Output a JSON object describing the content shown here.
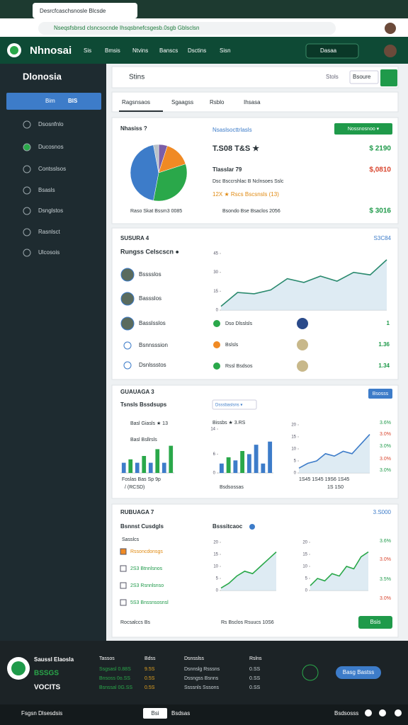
{
  "browser": {
    "tab_title": "Desrcfcaschsnosle Blcsde",
    "url": "Nseqsfsbrsd clsncsocnde Ihsqsbnefcsgesb.0sgb Gblsclsn"
  },
  "header": {
    "brand": "Nhnosai",
    "nav": [
      "Sis",
      "Bmsis",
      "Ntvins",
      "Banscs",
      "Dsctins",
      "Sisn"
    ],
    "search": "Dasaa"
  },
  "sidebar": {
    "title": "Dlonosia",
    "button": [
      "Bim",
      "BIS"
    ],
    "items": [
      "Dsosnfnlo",
      "Ducosnos",
      "Contsslsos",
      "Bsasls",
      "Dsnglstos",
      "Rasnlsct",
      "Ulcosois"
    ]
  },
  "toolbar": {
    "title": "Stins",
    "search": "Stols",
    "select": "Bsoure"
  },
  "tabs": [
    "Ragsnsaos",
    "Sgaagss",
    "Rsblo",
    "Ihsasa"
  ],
  "overview": {
    "title": "Nhasiss ?",
    "link": "Nsaslsocttrlasls",
    "button": "Nossnosnoo ▾",
    "pie_caption": "Raso Skat Bssm3 0085",
    "rows": [
      {
        "label": "T.S08 T&S ★",
        "value": "$ 2190"
      },
      {
        "label": "Tlasslar 79",
        "value": "$,0810"
      }
    ],
    "note": "Dsc Bsccrshlac B Nclnsoes Sslc",
    "highlight": "12X ★ Rscs Bscsnsls (13)",
    "total": {
      "label": "Bsondo Bse Bsaclos 2056",
      "value": "$ 3016"
    }
  },
  "activity": {
    "title": "SUSURA 4",
    "badge": "S3C84",
    "subtitle": "Rungss Celscscn ●",
    "people": [
      "Bsssslos",
      "Bassslos",
      "Basslsslos",
      "Bsnnsssion",
      "Dsnlssstos"
    ],
    "items": [
      "Dso Dlsslsls",
      "Bslsls",
      "Rssl Bsdsos"
    ],
    "amounts": [
      "1",
      "1.36",
      "1.34"
    ]
  },
  "stats": {
    "title": "GUAUAGA 3",
    "button": "Bsosss",
    "subtitle": "Tsnsls Bssdsups",
    "filter": "Dsssbaslsns ▾",
    "bar_label": "Basl Giasls ★ 13",
    "bar_sublabel": "Basl Bsllrsls",
    "bar_caption": [
      "Foslas Bas  Sp  9p",
      "/ (RCSD)"
    ],
    "bar2_label": "Bissbs ★ 3.RS",
    "bar2_caption": "Bsdsossas",
    "line_labels": [
      "3.6%",
      "3.0%",
      "3.0%",
      "3.0%",
      "3.0%"
    ],
    "line_caption": [
      "1S45 1S45 19S6 1S45",
      "1S 1S0"
    ]
  },
  "trends": {
    "title": "RUBUAGA 7",
    "badge": "3.S000",
    "subtitle": "Bsnnst Cusdgls",
    "legend": "Bsssitcaoc",
    "list_title": "Sasslcs",
    "list": [
      "Rssoncdonsgs",
      "2S3 Btnnlsnos",
      "2S3 Rsnnlsnso",
      "5S3 Bnssnsosnsl"
    ],
    "labels": [
      "3.6%",
      "3.0%",
      "3.5%",
      "3.0%"
    ],
    "caption": "Rocsalccs Bs",
    "caption2": "Rs Bsclos Rsuucs 10S6",
    "button": "Bsis"
  },
  "footer": {
    "brand": "Saussl Elaosla",
    "code": "BSSGS",
    "tagline": "VOCITS",
    "columns": [
      {
        "title": "Tassos",
        "items": [
          "Ssgsasl 0.88S",
          "Bnsoss 0o.SS",
          "Bsnssal 0G.SS"
        ]
      },
      {
        "title": "Bdss",
        "items": [
          "9.5S",
          "0.5S",
          "0.5S"
        ]
      },
      {
        "title": "Dsnsslss",
        "items": [
          "Dsnnslg Rsssns",
          "Dssngss Bsnns",
          "Ssssnls Sssons"
        ]
      },
      {
        "title": "Rslns",
        "items": [
          "0.SS",
          "0.SS",
          "0.SS"
        ]
      }
    ],
    "button": "Basg Bastss"
  },
  "bottom_bar": {
    "left": "Fsgsn Dlsesdsis",
    "button": "Bsi",
    "link": "Bsdsas",
    "right": "Bsdsosss"
  },
  "chart_data": [
    {
      "type": "pie",
      "values": [
        5,
        15,
        33,
        44,
        3
      ],
      "colors": [
        "#7b5ea7",
        "#f08a24",
        "#2aa84a",
        "#3d7cc9",
        "#b9c2c8"
      ]
    },
    {
      "type": "line",
      "values": [
        3,
        14,
        13,
        16,
        25,
        22,
        27,
        23,
        30,
        28,
        40
      ],
      "ylim": [
        0,
        45
      ],
      "yticks": [
        0,
        15,
        30,
        45
      ],
      "color": "#2a8a6e"
    },
    {
      "type": "bar",
      "values": [
        3,
        4,
        3,
        5,
        3,
        7,
        3,
        8
      ],
      "ylim": [
        0,
        10
      ],
      "colors": [
        "#3d7cc9",
        "#2aa84a",
        "#3d7cc9",
        "#2aa84a",
        "#3d7cc9",
        "#2aa84a",
        "#3d7cc9",
        "#2aa84a"
      ]
    },
    {
      "type": "bar",
      "values": [
        3,
        5,
        4,
        7,
        6,
        9,
        3,
        10
      ],
      "ylim": [
        0,
        14
      ],
      "yticks": [
        0,
        6,
        14
      ],
      "colors": [
        "#3d7cc9",
        "#2aa84a",
        "#3d7cc9",
        "#2aa84a",
        "#3d7cc9",
        "#3d7cc9",
        "#3d7cc9",
        "#3d7cc9"
      ]
    },
    {
      "type": "line",
      "values": [
        2,
        4,
        5,
        8,
        7,
        9,
        8,
        12,
        16
      ],
      "ylim": [
        0,
        20
      ],
      "yticks": [
        0,
        5,
        10,
        15,
        20
      ],
      "color": "#3d7cc9"
    },
    {
      "type": "line",
      "values": [
        1,
        3,
        6,
        8,
        7,
        10,
        13,
        16
      ],
      "ylim": [
        0,
        20
      ],
      "yticks": [
        0,
        5,
        10,
        15,
        20
      ],
      "color": "#2aa84a"
    },
    {
      "type": "line",
      "values": [
        2,
        5,
        4,
        7,
        6,
        10,
        9,
        14,
        16
      ],
      "ylim": [
        0,
        20
      ],
      "yticks": [
        0,
        5,
        10,
        15,
        20
      ],
      "color": "#2aa84a"
    }
  ]
}
